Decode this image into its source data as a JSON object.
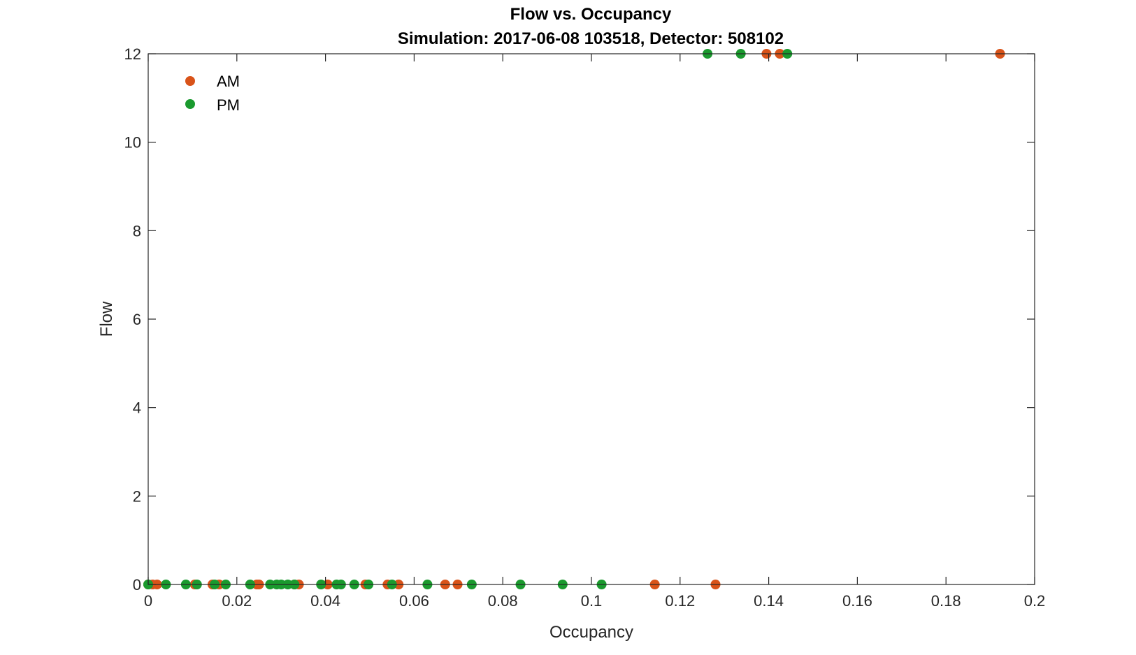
{
  "chart_data": {
    "type": "scatter",
    "title": "Flow vs. Occupancy",
    "subtitle": "Simulation:  2017-06-08 103518,  Detector:  508102",
    "xlabel": "Occupancy",
    "ylabel": "Flow",
    "xlim": [
      0,
      0.2
    ],
    "ylim": [
      0,
      12
    ],
    "x_ticks": [
      "0",
      "0.02",
      "0.04",
      "0.06",
      "0.08",
      "0.1",
      "0.12",
      "0.14",
      "0.16",
      "0.18",
      "0.2"
    ],
    "y_ticks": [
      "0",
      "2",
      "4",
      "6",
      "8",
      "10",
      "12"
    ],
    "grid": false,
    "legend_position": "top-left",
    "series": [
      {
        "name": "AM",
        "color": "#D95319",
        "points": [
          [
            0.0,
            0
          ],
          [
            0.001,
            0
          ],
          [
            0.002,
            0
          ],
          [
            0.0105,
            0
          ],
          [
            0.0145,
            0
          ],
          [
            0.016,
            0
          ],
          [
            0.0245,
            0
          ],
          [
            0.025,
            0
          ],
          [
            0.033,
            0
          ],
          [
            0.034,
            0
          ],
          [
            0.0405,
            0
          ],
          [
            0.049,
            0
          ],
          [
            0.054,
            0
          ],
          [
            0.0565,
            0
          ],
          [
            0.067,
            0
          ],
          [
            0.0698,
            0
          ],
          [
            0.1143,
            0
          ],
          [
            0.128,
            0
          ],
          [
            0.1395,
            12
          ],
          [
            0.1425,
            12
          ],
          [
            0.1922,
            12
          ]
        ]
      },
      {
        "name": "PM",
        "color": "#1A9A2E",
        "points": [
          [
            0.0,
            0
          ],
          [
            0.004,
            0
          ],
          [
            0.0085,
            0
          ],
          [
            0.011,
            0
          ],
          [
            0.015,
            0
          ],
          [
            0.0175,
            0
          ],
          [
            0.023,
            0
          ],
          [
            0.0275,
            0
          ],
          [
            0.029,
            0
          ],
          [
            0.03,
            0
          ],
          [
            0.0315,
            0
          ],
          [
            0.033,
            0
          ],
          [
            0.039,
            0
          ],
          [
            0.0425,
            0
          ],
          [
            0.0435,
            0
          ],
          [
            0.0465,
            0
          ],
          [
            0.0497,
            0
          ],
          [
            0.055,
            0
          ],
          [
            0.063,
            0
          ],
          [
            0.073,
            0
          ],
          [
            0.084,
            0
          ],
          [
            0.0935,
            0
          ],
          [
            0.1023,
            0
          ],
          [
            0.1262,
            12
          ],
          [
            0.1337,
            12
          ],
          [
            0.1442,
            12
          ]
        ]
      }
    ]
  }
}
